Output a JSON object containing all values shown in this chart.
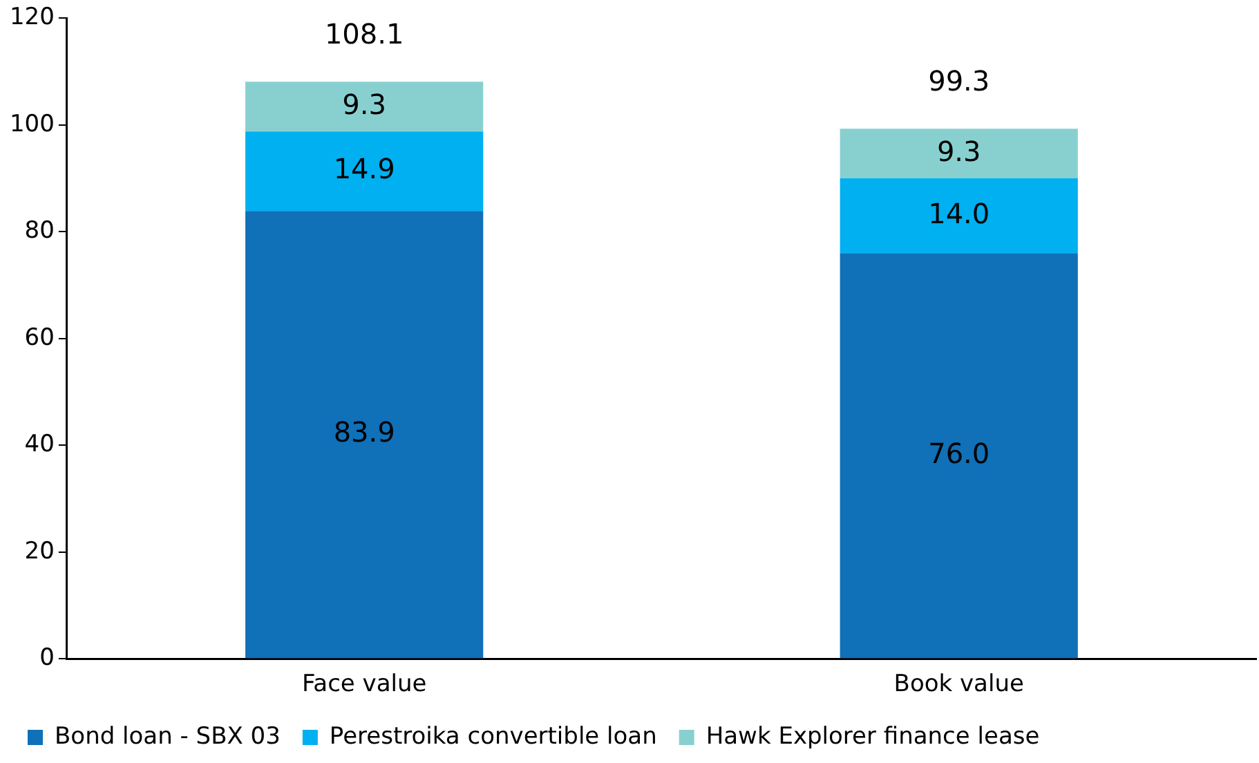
{
  "chart_data": {
    "type": "bar",
    "stacked": true,
    "categories": [
      "Face value",
      "Book value"
    ],
    "series": [
      {
        "name": "Bond loan - SBX 03",
        "color": "#1070b8",
        "values": [
          83.9,
          76.0
        ],
        "value_labels": [
          "83.9",
          "76.0"
        ]
      },
      {
        "name": "Perestroika convertible loan",
        "color": "#00b0f0",
        "values": [
          14.9,
          14.0
        ],
        "value_labels": [
          "14.9",
          "14.0"
        ]
      },
      {
        "name": "Hawk Explorer finance lease",
        "color": "#88d0d0",
        "values": [
          9.3,
          9.3
        ],
        "value_labels": [
          "9.3",
          "9.3"
        ]
      }
    ],
    "totals": [
      "108.1",
      "99.3"
    ],
    "ylim": [
      0,
      120
    ],
    "yticks": [
      0,
      20,
      40,
      60,
      80,
      100,
      120
    ],
    "grid": false,
    "legend": "bottom"
  }
}
